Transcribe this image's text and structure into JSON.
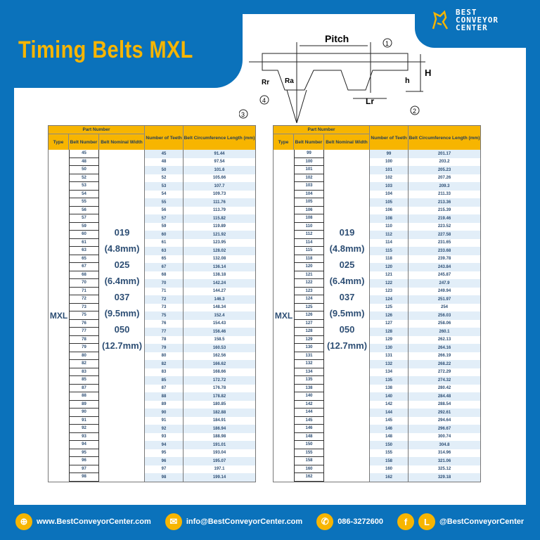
{
  "title": "Timing Belts MXL",
  "logo": {
    "line1": "BEST",
    "line2": "CONVEYOR",
    "line3": "CENTER"
  },
  "diagram": {
    "pitch": "Pitch",
    "H": "H",
    "h": "h",
    "Lr": "Lr",
    "Rr": "Rr",
    "Ra": "Ra",
    "n1": "1",
    "n2": "2",
    "n3": "3",
    "n4": "4"
  },
  "table_headers": {
    "part_number": "Part Number",
    "type": "Type",
    "belt_number": "Belt Number",
    "width": "Belt Nominal Width",
    "teeth": "Number of Teeth",
    "length": "Belt Circumference Length (mm)"
  },
  "type": "MXL",
  "widths": [
    {
      "code": "019",
      "mm": "(4.8mm)"
    },
    {
      "code": "025",
      "mm": "(6.4mm)"
    },
    {
      "code": "037",
      "mm": "(9.5mm)"
    },
    {
      "code": "050",
      "mm": "(12.7mm)"
    }
  ],
  "left_rows": [
    [
      "45",
      "45",
      "91.44"
    ],
    [
      "48",
      "48",
      "97.54"
    ],
    [
      "50",
      "50",
      "101.6"
    ],
    [
      "52",
      "52",
      "105.66"
    ],
    [
      "53",
      "53",
      "107.7"
    ],
    [
      "54",
      "54",
      "109.73"
    ],
    [
      "55",
      "55",
      "111.76"
    ],
    [
      "56",
      "56",
      "113.79"
    ],
    [
      "57",
      "57",
      "115.82"
    ],
    [
      "59",
      "59",
      "119.89"
    ],
    [
      "60",
      "60",
      "121.92"
    ],
    [
      "61",
      "61",
      "123.95"
    ],
    [
      "63",
      "63",
      "128.02"
    ],
    [
      "65",
      "65",
      "132.08"
    ],
    [
      "67",
      "67",
      "136.14"
    ],
    [
      "68",
      "68",
      "138.18"
    ],
    [
      "70",
      "70",
      "142.24"
    ],
    [
      "71",
      "71",
      "144.27"
    ],
    [
      "72",
      "72",
      "146.3"
    ],
    [
      "73",
      "73",
      "148.34"
    ],
    [
      "75",
      "75",
      "152.4"
    ],
    [
      "76",
      "76",
      "154.43"
    ],
    [
      "77",
      "77",
      "156.46"
    ],
    [
      "78",
      "78",
      "158.5"
    ],
    [
      "79",
      "79",
      "160.53"
    ],
    [
      "80",
      "80",
      "162.56"
    ],
    [
      "82",
      "82",
      "166.62"
    ],
    [
      "83",
      "83",
      "168.66"
    ],
    [
      "85",
      "85",
      "172.72"
    ],
    [
      "87",
      "87",
      "176.78"
    ],
    [
      "88",
      "88",
      "178.82"
    ],
    [
      "89",
      "89",
      "180.85"
    ],
    [
      "90",
      "90",
      "182.88"
    ],
    [
      "91",
      "91",
      "184.91"
    ],
    [
      "92",
      "92",
      "186.94"
    ],
    [
      "93",
      "93",
      "188.98"
    ],
    [
      "94",
      "94",
      "191.01"
    ],
    [
      "95",
      "95",
      "193.04"
    ],
    [
      "96",
      "96",
      "195.07"
    ],
    [
      "97",
      "97",
      "197.1"
    ],
    [
      "98",
      "98",
      "199.14"
    ]
  ],
  "right_rows": [
    [
      "99",
      "99",
      "201.17"
    ],
    [
      "100",
      "100",
      "203.2"
    ],
    [
      "101",
      "101",
      "205.23"
    ],
    [
      "102",
      "102",
      "207.26"
    ],
    [
      "103",
      "103",
      "209.3"
    ],
    [
      "104",
      "104",
      "211.33"
    ],
    [
      "105",
      "105",
      "213.36"
    ],
    [
      "106",
      "106",
      "215.39"
    ],
    [
      "108",
      "108",
      "219.46"
    ],
    [
      "110",
      "110",
      "223.52"
    ],
    [
      "112",
      "112",
      "227.58"
    ],
    [
      "114",
      "114",
      "231.65"
    ],
    [
      "115",
      "115",
      "233.68"
    ],
    [
      "118",
      "118",
      "239.78"
    ],
    [
      "120",
      "120",
      "243.84"
    ],
    [
      "121",
      "121",
      "245.87"
    ],
    [
      "122",
      "122",
      "247.9"
    ],
    [
      "123",
      "123",
      "249.94"
    ],
    [
      "124",
      "124",
      "251.97"
    ],
    [
      "125",
      "125",
      "254"
    ],
    [
      "126",
      "126",
      "256.03"
    ],
    [
      "127",
      "127",
      "258.06"
    ],
    [
      "128",
      "128",
      "260.1"
    ],
    [
      "129",
      "129",
      "262.13"
    ],
    [
      "130",
      "130",
      "264.16"
    ],
    [
      "131",
      "131",
      "266.19"
    ],
    [
      "132",
      "132",
      "268.22"
    ],
    [
      "134",
      "134",
      "272.29"
    ],
    [
      "135",
      "135",
      "274.32"
    ],
    [
      "138",
      "138",
      "280.42"
    ],
    [
      "140",
      "140",
      "284.48"
    ],
    [
      "142",
      "142",
      "288.54"
    ],
    [
      "144",
      "144",
      "292.61"
    ],
    [
      "145",
      "145",
      "294.64"
    ],
    [
      "146",
      "146",
      "296.67"
    ],
    [
      "148",
      "148",
      "300.74"
    ],
    [
      "150",
      "150",
      "304.8"
    ],
    [
      "155",
      "155",
      "314.96"
    ],
    [
      "158",
      "158",
      "321.06"
    ],
    [
      "160",
      "160",
      "325.12"
    ],
    [
      "162",
      "162",
      "329.18"
    ]
  ],
  "footer": {
    "website": "www.BestConveyorCenter.com",
    "email": "info@BestConveyorCenter.com",
    "phone": "086-3272600",
    "social": "@BestConveyorCenter"
  },
  "colors": {
    "brand_blue": "#0b72bb",
    "accent_yellow": "#f7b500"
  }
}
